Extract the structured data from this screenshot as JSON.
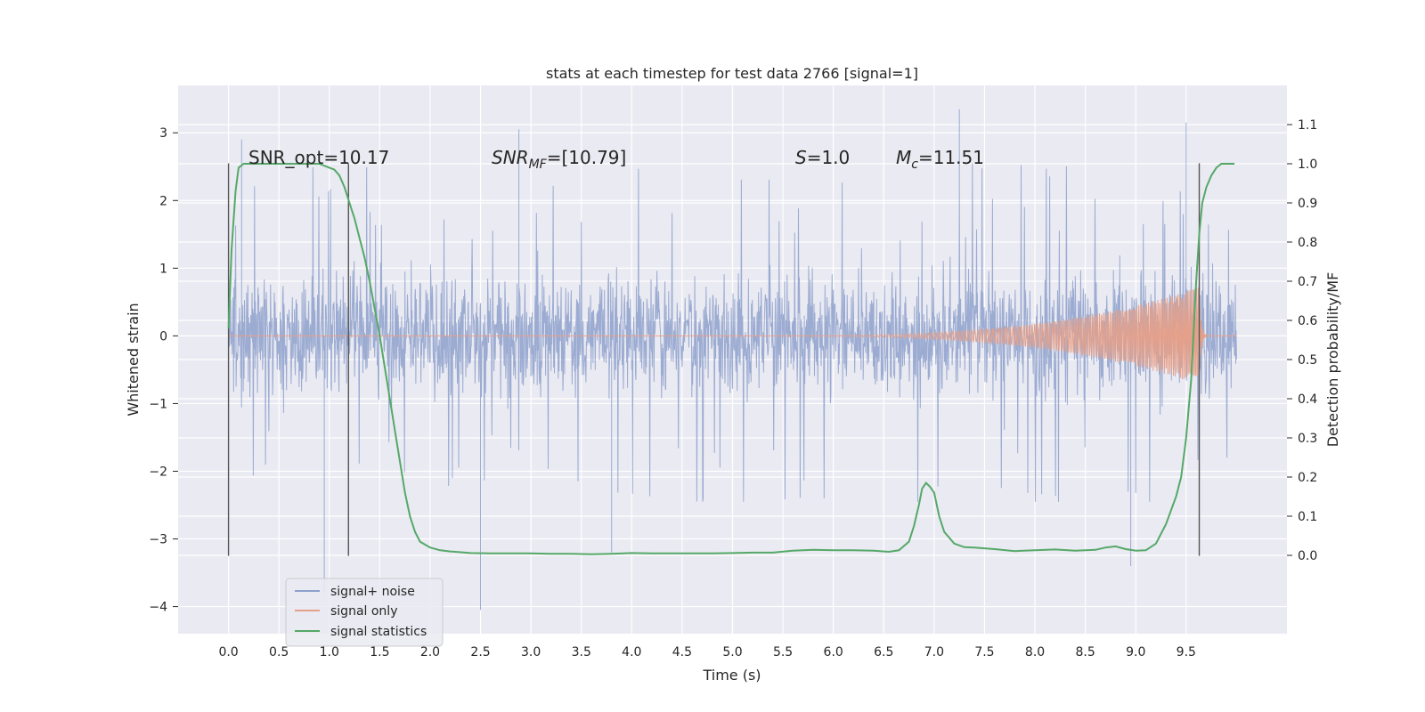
{
  "chart_data": {
    "type": "line",
    "title": "stats at each timestep for test data 2766 [signal=1]",
    "xlabel": "Time (s)",
    "ylabel": "Whitened strain",
    "ylabel_right": "Detection probability/MF",
    "xlim": [
      -0.5,
      10.5
    ],
    "ylim": [
      -4.4,
      3.7
    ],
    "ylim_right": [
      -0.2,
      1.2
    ],
    "x_ticks": [
      "0.0",
      "0.5",
      "1.0",
      "1.5",
      "2.0",
      "2.5",
      "3.0",
      "3.5",
      "4.0",
      "4.5",
      "5.0",
      "5.5",
      "6.0",
      "6.5",
      "7.0",
      "7.5",
      "8.0",
      "8.5",
      "9.0",
      "9.5"
    ],
    "y_ticks": [
      "−4",
      "−3",
      "−2",
      "−1",
      "0",
      "1",
      "2",
      "3"
    ],
    "y_ticks_right": [
      "0.0",
      "0.1",
      "0.2",
      "0.3",
      "0.4",
      "0.5",
      "0.6",
      "0.7",
      "0.8",
      "0.9",
      "1.0",
      "1.1"
    ],
    "grid": true,
    "legend_position": "lower-left",
    "annotations": {
      "snr_opt": "SNR_opt=10.17",
      "snr_mf_main": "SNR",
      "snr_mf_sub": "MF",
      "snr_mf_value": "=[10.79]",
      "s_symbol": "S",
      "s_value": "=1.0",
      "mc_symbol": "M",
      "mc_sub": "c",
      "mc_value": "=11.51"
    },
    "vertical_lines": [
      {
        "x": 0.0,
        "y_range": [
          -3.25,
          2.55
        ]
      },
      {
        "x": 1.19,
        "y_range": [
          -3.25,
          2.55
        ]
      },
      {
        "x": 9.63,
        "y_range": [
          -3.25,
          2.55
        ]
      }
    ],
    "series": [
      {
        "name": "signal+ noise",
        "color": "#8da0cb",
        "x_range": [
          0.0,
          10.0
        ],
        "envelope_typical": 1.4,
        "notable_peaks": [
          {
            "x": 0.13,
            "y": 2.9
          },
          {
            "x": 0.95,
            "y": -3.8
          },
          {
            "x": 2.5,
            "y": -4.05
          },
          {
            "x": 2.88,
            "y": 3.05
          },
          {
            "x": 3.8,
            "y": -3.2
          },
          {
            "x": 7.25,
            "y": 3.35
          },
          {
            "x": 8.95,
            "y": -3.4
          },
          {
            "x": 9.5,
            "y": 3.15
          }
        ]
      },
      {
        "name": "signal only",
        "color": "#e5a08a",
        "chirp": {
          "t_start": 5.0,
          "t_merge": 9.63,
          "amp_max": 0.72
        }
      },
      {
        "name": "signal statistics",
        "color": "#55a868",
        "axis": "right",
        "x": [
          0.0,
          0.03,
          0.07,
          0.1,
          0.15,
          0.2,
          0.3,
          0.5,
          0.7,
          0.9,
          1.0,
          1.05,
          1.1,
          1.15,
          1.2,
          1.25,
          1.3,
          1.35,
          1.4,
          1.45,
          1.5,
          1.55,
          1.6,
          1.65,
          1.7,
          1.75,
          1.8,
          1.85,
          1.9,
          2.0,
          2.1,
          2.2,
          2.4,
          2.6,
          2.8,
          3.0,
          3.2,
          3.4,
          3.6,
          3.8,
          4.0,
          4.2,
          4.4,
          4.6,
          4.8,
          5.0,
          5.2,
          5.4,
          5.6,
          5.8,
          6.0,
          6.2,
          6.4,
          6.55,
          6.65,
          6.75,
          6.8,
          6.85,
          6.88,
          6.92,
          6.96,
          7.0,
          7.05,
          7.1,
          7.2,
          7.3,
          7.4,
          7.6,
          7.8,
          8.0,
          8.2,
          8.4,
          8.6,
          8.7,
          8.8,
          8.9,
          9.0,
          9.1,
          9.2,
          9.3,
          9.4,
          9.45,
          9.5,
          9.55,
          9.58,
          9.6,
          9.63,
          9.66,
          9.7,
          9.75,
          9.8,
          9.85,
          9.9,
          9.95,
          9.98
        ],
        "values": [
          0.58,
          0.78,
          0.93,
          0.99,
          1.0,
          1.0,
          1.0,
          1.0,
          1.0,
          1.0,
          0.99,
          0.985,
          0.97,
          0.94,
          0.9,
          0.86,
          0.81,
          0.76,
          0.7,
          0.63,
          0.56,
          0.48,
          0.4,
          0.32,
          0.24,
          0.16,
          0.1,
          0.06,
          0.035,
          0.02,
          0.013,
          0.01,
          0.006,
          0.005,
          0.005,
          0.005,
          0.004,
          0.004,
          0.003,
          0.004,
          0.006,
          0.005,
          0.005,
          0.005,
          0.005,
          0.006,
          0.007,
          0.007,
          0.012,
          0.014,
          0.013,
          0.013,
          0.012,
          0.009,
          0.013,
          0.035,
          0.075,
          0.13,
          0.17,
          0.185,
          0.175,
          0.16,
          0.1,
          0.06,
          0.03,
          0.021,
          0.02,
          0.016,
          0.011,
          0.013,
          0.015,
          0.012,
          0.014,
          0.02,
          0.023,
          0.016,
          0.012,
          0.013,
          0.03,
          0.08,
          0.15,
          0.2,
          0.3,
          0.45,
          0.6,
          0.7,
          0.82,
          0.9,
          0.94,
          0.97,
          0.99,
          1.0,
          1.0,
          1.0,
          1.0
        ]
      }
    ]
  }
}
